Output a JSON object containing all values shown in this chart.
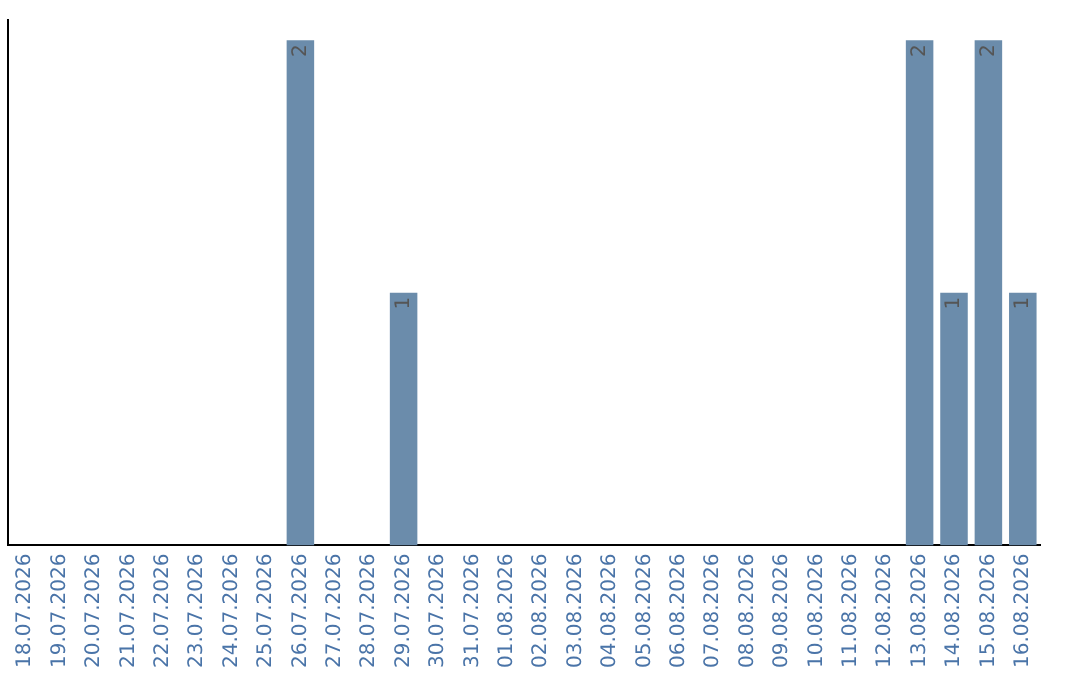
{
  "chart_data": {
    "type": "bar",
    "categories": [
      "18.07.2026",
      "19.07.2026",
      "20.07.2026",
      "21.07.2026",
      "22.07.2026",
      "23.07.2026",
      "24.07.2026",
      "25.07.2026",
      "26.07.2026",
      "27.07.2026",
      "28.07.2026",
      "29.07.2026",
      "30.07.2026",
      "31.07.2026",
      "01.08.2026",
      "02.08.2026",
      "03.08.2026",
      "04.08.2026",
      "05.08.2026",
      "06.08.2026",
      "07.08.2026",
      "08.08.2026",
      "09.08.2026",
      "10.08.2026",
      "11.08.2026",
      "12.08.2026",
      "13.08.2026",
      "14.08.2026",
      "15.08.2026",
      "16.08.2026"
    ],
    "values": [
      0,
      0,
      0,
      0,
      0,
      0,
      0,
      0,
      2,
      0,
      0,
      1,
      0,
      0,
      0,
      0,
      0,
      0,
      0,
      0,
      0,
      0,
      0,
      0,
      0,
      0,
      2,
      1,
      2,
      1
    ],
    "value_labels": [
      null,
      null,
      null,
      null,
      null,
      null,
      null,
      null,
      "2",
      null,
      null,
      "1",
      null,
      null,
      null,
      null,
      null,
      null,
      null,
      null,
      null,
      null,
      null,
      null,
      null,
      null,
      "2",
      "1",
      "2",
      "1"
    ],
    "color": "#6b8cab",
    "grid": false,
    "legend": false,
    "tick_labels": "x"
  }
}
